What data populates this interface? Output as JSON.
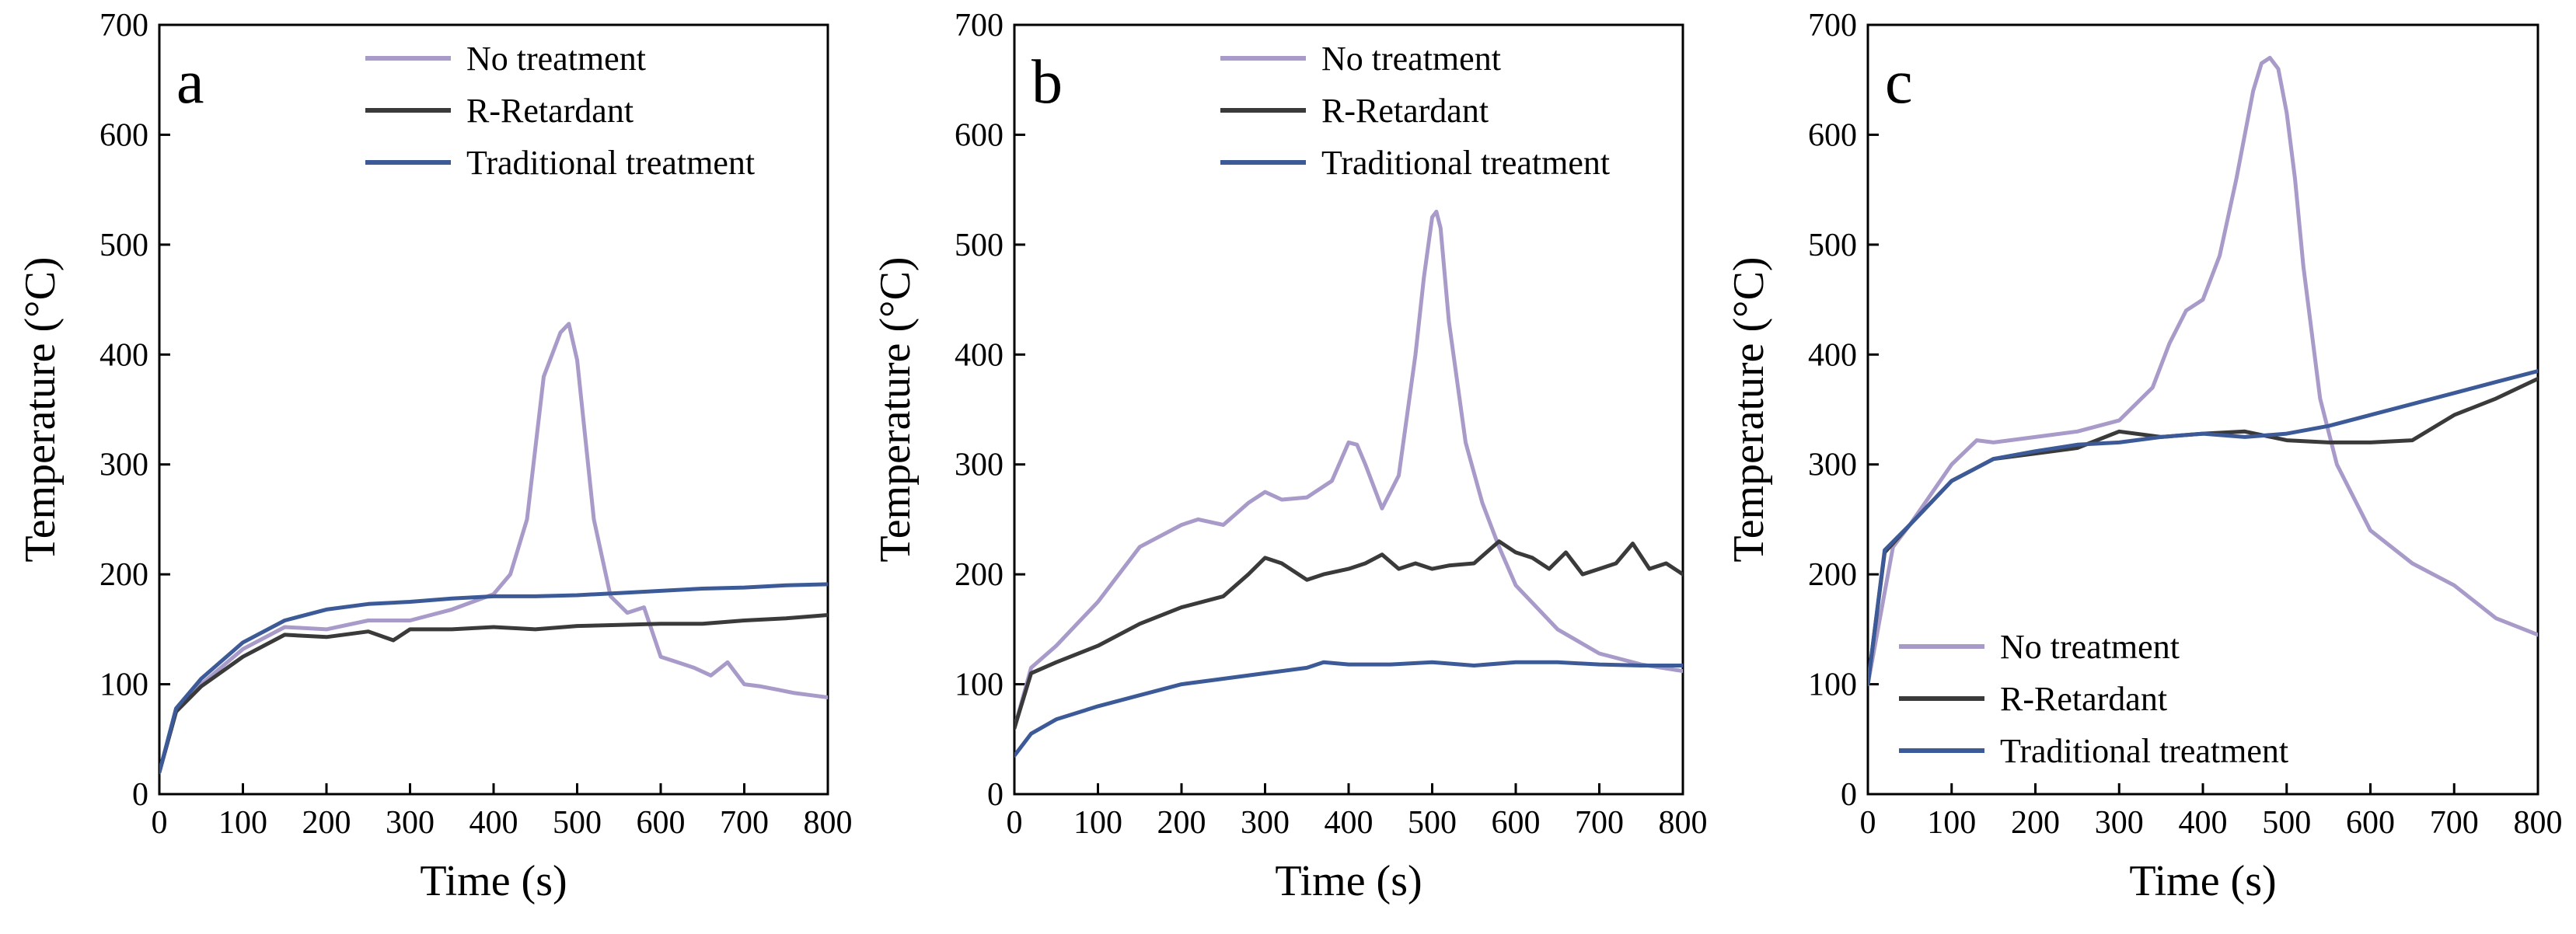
{
  "chart_data": [
    {
      "type": "line",
      "panel_label": "a",
      "xlabel": "Time (s)",
      "ylabel": "Temperature (°C)",
      "xlim": [
        0,
        800
      ],
      "ylim": [
        0,
        700
      ],
      "xticks": [
        0,
        100,
        200,
        300,
        400,
        500,
        600,
        700,
        800
      ],
      "yticks": [
        0,
        100,
        200,
        300,
        400,
        500,
        600,
        700
      ],
      "legend_position": "top-right",
      "series": [
        {
          "name": "No treatment",
          "color": "#A89AC9",
          "x": [
            0,
            20,
            50,
            100,
            150,
            200,
            250,
            300,
            350,
            400,
            420,
            440,
            460,
            480,
            490,
            500,
            520,
            540,
            560,
            580,
            600,
            620,
            640,
            660,
            680,
            700,
            720,
            740,
            760,
            780,
            800
          ],
          "y": [
            20,
            75,
            100,
            132,
            152,
            150,
            158,
            158,
            168,
            182,
            200,
            250,
            380,
            420,
            428,
            395,
            250,
            180,
            165,
            170,
            125,
            120,
            115,
            108,
            120,
            100,
            98,
            95,
            92,
            90,
            88
          ]
        },
        {
          "name": "R-Retardant",
          "color": "#3A3A3A",
          "x": [
            0,
            20,
            50,
            100,
            150,
            200,
            250,
            280,
            300,
            350,
            400,
            450,
            500,
            550,
            600,
            650,
            700,
            750,
            800
          ],
          "y": [
            20,
            75,
            98,
            125,
            145,
            143,
            148,
            140,
            150,
            150,
            152,
            150,
            153,
            154,
            155,
            155,
            158,
            160,
            163
          ]
        },
        {
          "name": "Traditional treatment",
          "color": "#3D5A98",
          "x": [
            0,
            20,
            50,
            100,
            150,
            200,
            250,
            300,
            350,
            400,
            450,
            500,
            550,
            600,
            650,
            700,
            750,
            800
          ],
          "y": [
            20,
            78,
            105,
            138,
            158,
            168,
            173,
            175,
            178,
            180,
            180,
            181,
            183,
            185,
            187,
            188,
            190,
            191
          ]
        }
      ]
    },
    {
      "type": "line",
      "panel_label": "b",
      "xlabel": "Time (s)",
      "ylabel": "Temperature (°C)",
      "xlim": [
        0,
        800
      ],
      "ylim": [
        0,
        700
      ],
      "xticks": [
        0,
        100,
        200,
        300,
        400,
        500,
        600,
        700,
        800
      ],
      "yticks": [
        0,
        100,
        200,
        300,
        400,
        500,
        600,
        700
      ],
      "legend_position": "top-right",
      "series": [
        {
          "name": "No treatment",
          "color": "#A89AC9",
          "x": [
            0,
            20,
            50,
            100,
            150,
            200,
            220,
            250,
            280,
            300,
            320,
            350,
            380,
            400,
            410,
            420,
            440,
            460,
            480,
            490,
            500,
            505,
            510,
            520,
            540,
            560,
            580,
            600,
            650,
            700,
            750,
            800
          ],
          "y": [
            60,
            115,
            135,
            175,
            225,
            245,
            250,
            245,
            265,
            275,
            268,
            270,
            285,
            320,
            318,
            300,
            260,
            290,
            400,
            470,
            525,
            530,
            515,
            430,
            320,
            265,
            225,
            190,
            150,
            128,
            118,
            112
          ]
        },
        {
          "name": "R-Retardant",
          "color": "#3A3A3A",
          "x": [
            0,
            20,
            50,
            100,
            150,
            200,
            250,
            280,
            300,
            320,
            350,
            370,
            400,
            420,
            440,
            460,
            480,
            500,
            520,
            550,
            580,
            600,
            620,
            640,
            660,
            680,
            700,
            720,
            740,
            760,
            780,
            800
          ],
          "y": [
            60,
            110,
            120,
            135,
            155,
            170,
            180,
            200,
            215,
            210,
            195,
            200,
            205,
            210,
            218,
            205,
            210,
            205,
            208,
            210,
            230,
            220,
            215,
            205,
            220,
            200,
            205,
            210,
            228,
            205,
            210,
            200
          ]
        },
        {
          "name": "Traditional treatment",
          "color": "#3D5A98",
          "x": [
            0,
            20,
            50,
            100,
            150,
            200,
            250,
            300,
            350,
            370,
            400,
            450,
            500,
            550,
            600,
            650,
            700,
            750,
            800
          ],
          "y": [
            35,
            55,
            68,
            80,
            90,
            100,
            105,
            110,
            115,
            120,
            118,
            118,
            120,
            117,
            120,
            120,
            118,
            117,
            117
          ]
        }
      ]
    },
    {
      "type": "line",
      "panel_label": "c",
      "xlabel": "Time (s)",
      "ylabel": "Temperature (°C)",
      "xlim": [
        0,
        800
      ],
      "ylim": [
        0,
        700
      ],
      "xticks": [
        0,
        100,
        200,
        300,
        400,
        500,
        600,
        700,
        800
      ],
      "yticks": [
        0,
        100,
        200,
        300,
        400,
        500,
        600,
        700
      ],
      "legend_position": "bottom-left",
      "series": [
        {
          "name": "No treatment",
          "color": "#A89AC9",
          "x": [
            0,
            30,
            50,
            100,
            130,
            150,
            200,
            250,
            300,
            340,
            360,
            380,
            400,
            420,
            440,
            460,
            470,
            480,
            490,
            500,
            510,
            520,
            540,
            560,
            580,
            600,
            650,
            700,
            750,
            800
          ],
          "y": [
            100,
            225,
            245,
            300,
            322,
            320,
            325,
            330,
            340,
            370,
            410,
            440,
            450,
            490,
            560,
            640,
            665,
            670,
            660,
            620,
            560,
            480,
            360,
            300,
            270,
            240,
            210,
            190,
            160,
            145
          ]
        },
        {
          "name": "R-Retardant",
          "color": "#3A3A3A",
          "x": [
            0,
            20,
            50,
            100,
            150,
            200,
            250,
            300,
            350,
            400,
            450,
            500,
            550,
            600,
            650,
            700,
            750,
            800
          ],
          "y": [
            100,
            220,
            245,
            285,
            305,
            310,
            315,
            330,
            325,
            328,
            330,
            322,
            320,
            320,
            322,
            345,
            360,
            378
          ]
        },
        {
          "name": "Traditional treatment",
          "color": "#3D5A98",
          "x": [
            0,
            20,
            50,
            100,
            150,
            200,
            250,
            300,
            350,
            400,
            450,
            500,
            550,
            600,
            650,
            700,
            750,
            800
          ],
          "y": [
            100,
            222,
            245,
            285,
            305,
            312,
            318,
            320,
            325,
            328,
            325,
            328,
            335,
            345,
            355,
            365,
            375,
            385
          ]
        }
      ]
    }
  ]
}
